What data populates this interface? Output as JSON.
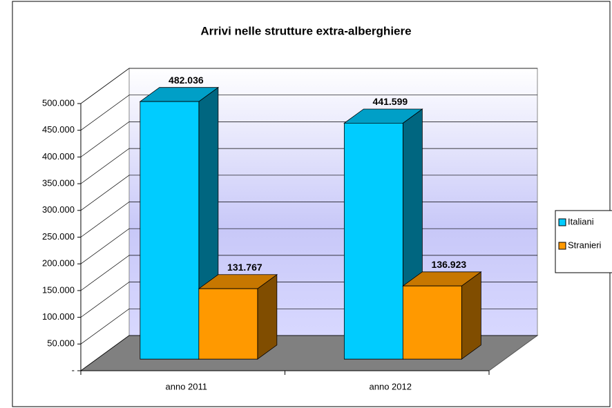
{
  "chart_data": {
    "type": "bar3d",
    "title": "Arrivi nelle strutture extra-alberghiere",
    "categories": [
      "anno 2011",
      "anno  2012"
    ],
    "series": [
      {
        "name": "Italiani",
        "color": "#00ccff",
        "values": [
          482036,
          441599
        ],
        "value_labels": [
          "482.036",
          "441.599"
        ]
      },
      {
        "name": "Stranieri",
        "color": "#ff9900",
        "values": [
          131767,
          136923
        ],
        "value_labels": [
          "131.767",
          "136.923"
        ]
      }
    ],
    "ylim": [
      0,
      500000
    ],
    "yticks": [
      {
        "value": 0,
        "label": "-"
      },
      {
        "value": 50000,
        "label": "50.000"
      },
      {
        "value": 100000,
        "label": "100.000"
      },
      {
        "value": 150000,
        "label": "150.000"
      },
      {
        "value": 200000,
        "label": "200.000"
      },
      {
        "value": 250000,
        "label": "250.000"
      },
      {
        "value": 300000,
        "label": "300.000"
      },
      {
        "value": 350000,
        "label": "350.000"
      },
      {
        "value": 400000,
        "label": "400.000"
      },
      {
        "value": 450000,
        "label": "450.000"
      },
      {
        "value": 500000,
        "label": "500.000"
      }
    ],
    "grid": true,
    "legend": "right"
  }
}
